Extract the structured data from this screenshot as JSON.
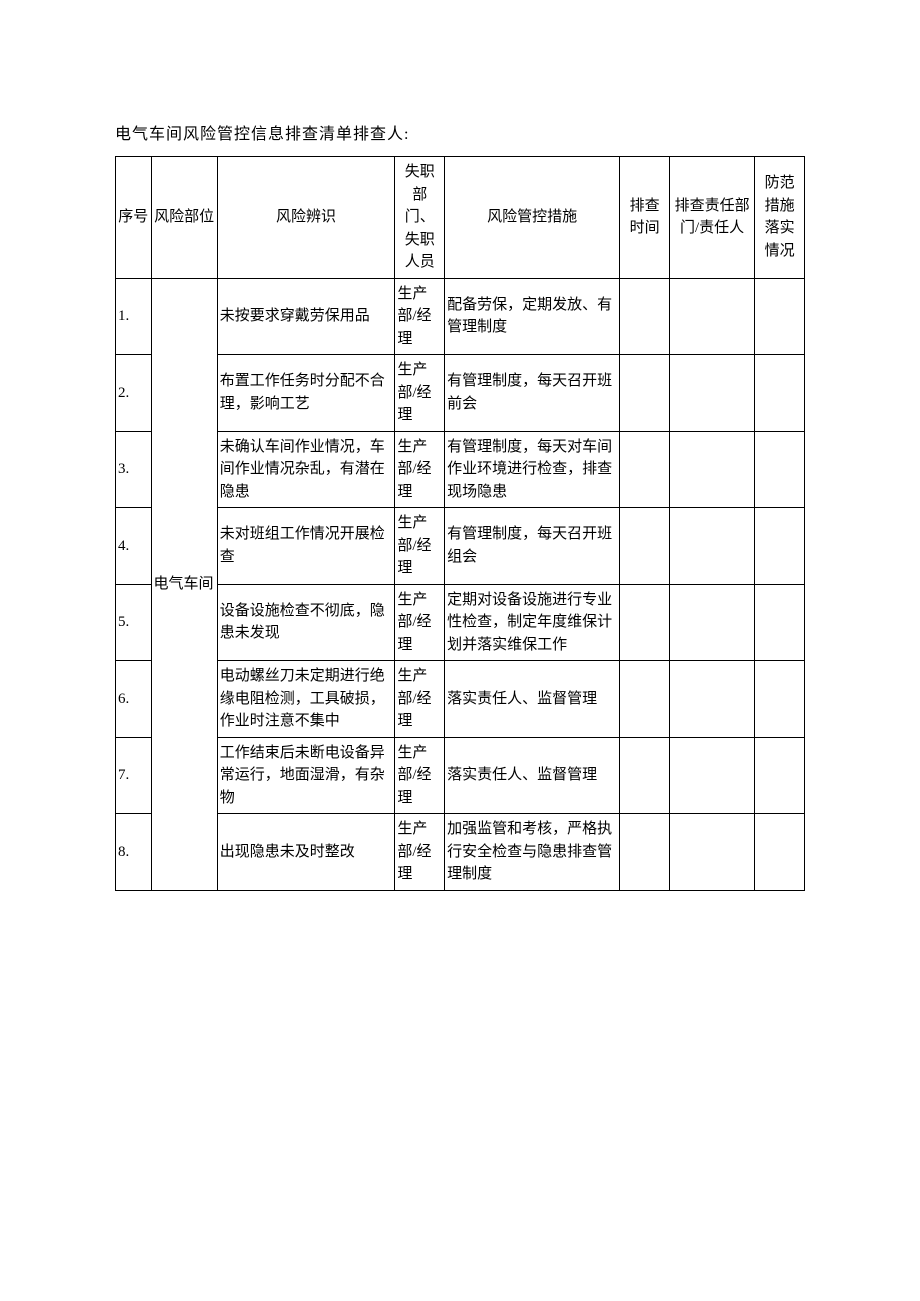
{
  "title": "电气车间风险管控信息排查清单排查人:",
  "headers": {
    "seq": "序号",
    "part": "风险部位",
    "risk": "风险辨识",
    "dept": "失职部门、失职人员",
    "measure": "风险管控措施",
    "time": "排查时间",
    "resp": "排查责任部门/责任人",
    "status": "防范措施落实情况"
  },
  "riskPart": "电气车间",
  "rows": [
    {
      "seq": "1.",
      "risk": "未按要求穿戴劳保用品",
      "dept": "生产部/经理",
      "measure": "配备劳保，定期发放、有管理制度"
    },
    {
      "seq": "2.",
      "risk": "布置工作任务时分配不合理，影响工艺",
      "dept": "生产部/经理",
      "measure": "有管理制度，每天召开班前会"
    },
    {
      "seq": "3.",
      "risk": "未确认车间作业情况，车间作业情况杂乱，有潜在隐患",
      "dept": "生产部/经理",
      "measure": "有管理制度，每天对车间作业环境进行检查，排查现场隐患"
    },
    {
      "seq": "4.",
      "risk": "未对班组工作情况开展检查",
      "dept": "生产部/经理",
      "measure": "有管理制度，每天召开班组会"
    },
    {
      "seq": "5.",
      "risk": "设备设施检查不彻底，隐患未发现",
      "dept": "生产部/经理",
      "measure": "定期对设备设施进行专业性检查，制定年度维保计划并落实维保工作"
    },
    {
      "seq": "6.",
      "risk": "电动螺丝刀未定期进行绝缘电阻检测，工具破损，作业时注意不集中",
      "dept": "生产部/经理",
      "measure": "落实责任人、监督管理"
    },
    {
      "seq": "7.",
      "risk": "工作结束后未断电设备异常运行，地面湿滑，有杂物",
      "dept": "生产部/经理",
      "measure": "落实责任人、监督管理"
    },
    {
      "seq": "8.",
      "risk": "出现隐患未及时整改",
      "dept": "生产部/经理",
      "measure": "加强监管和考核，严格执行安全检查与隐患排查管理制度"
    }
  ]
}
